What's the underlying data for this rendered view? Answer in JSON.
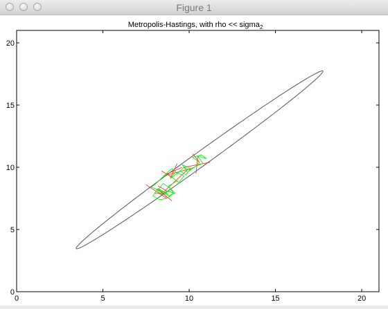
{
  "window": {
    "title": "Figure 1",
    "buttons": [
      "close",
      "minimize",
      "zoom"
    ]
  },
  "chart_data": {
    "type": "line",
    "title": "Metropolis-Hastings, with rho << sigma",
    "title_subscript": "2",
    "xlabel": "",
    "ylabel": "",
    "xlim": [
      0,
      21
    ],
    "ylim": [
      0,
      21
    ],
    "xticks": [
      0,
      5,
      10,
      15,
      20
    ],
    "yticks": [
      0,
      5,
      10,
      15,
      20
    ],
    "grid": false,
    "ellipse": {
      "center": [
        10.6,
        10.6
      ],
      "angle_deg": 45,
      "semi_major": 10.1,
      "semi_minor": 0.5,
      "color": "#555555"
    },
    "series": [
      {
        "color": "#00ee00",
        "x": [
          8.6,
          8.9,
          8.4,
          8.8,
          8.2,
          7.9,
          8.3,
          8.7,
          9.1,
          8.8,
          9.3,
          9.0,
          9.4,
          9.7,
          9.2,
          8.9,
          9.5,
          9.8,
          10.1,
          9.6,
          9.9,
          10.3,
          10.6,
          10.2,
          10.7,
          11.0,
          10.5,
          10.8,
          10.4,
          10.0,
          9.7,
          9.3,
          9.0,
          8.6,
          8.3,
          8.0,
          7.8,
          8.2,
          8.5,
          8.9,
          9.2,
          8.7,
          8.4,
          8.1,
          8.5,
          8.8,
          9.1,
          8.8,
          8.6
        ],
        "y": [
          7.9,
          7.6,
          8.1,
          7.8,
          8.3,
          7.7,
          7.4,
          7.5,
          7.9,
          8.5,
          8.9,
          9.2,
          8.8,
          9.3,
          9.6,
          9.1,
          9.7,
          9.4,
          9.9,
          10.2,
          9.6,
          10.0,
          10.4,
          10.8,
          11.0,
          10.7,
          10.9,
          10.3,
          10.1,
          9.8,
          10.0,
          9.5,
          9.9,
          9.4,
          9.0,
          8.6,
          8.4,
          8.2,
          8.7,
          8.3,
          7.9,
          8.1,
          7.8,
          8.2,
          8.0,
          7.7,
          7.9,
          8.1,
          7.9
        ]
      }
    ],
    "rejected_proposals": {
      "color": "#ff2020",
      "x": [
        8.0,
        8.7,
        7.5,
        8.4,
        9.3,
        8.5,
        10.2,
        10.4,
        11.2,
        9.6,
        9.0,
        8.2,
        9.9
      ],
      "y": [
        7.9,
        7.6,
        8.6,
        9.7,
        10.3,
        9.3,
        11.1,
        9.5,
        10.4,
        10.0,
        7.3,
        8.5,
        9.8
      ]
    }
  }
}
